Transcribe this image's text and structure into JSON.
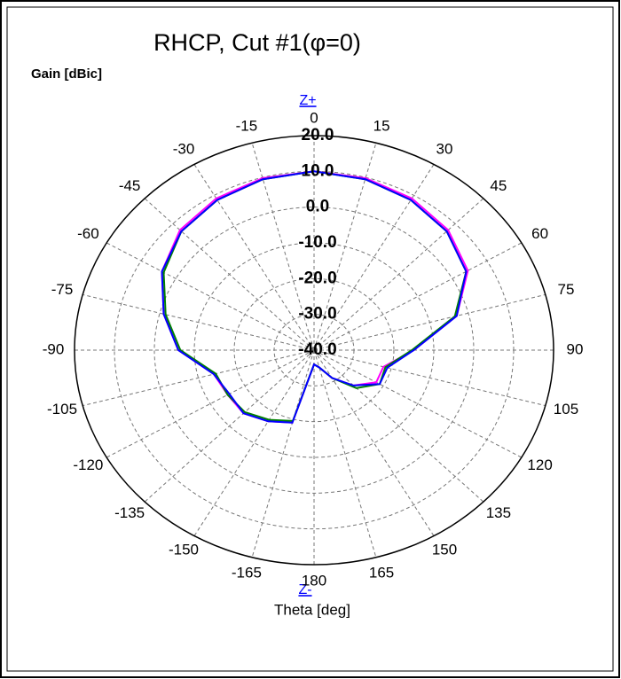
{
  "chart_data": {
    "type": "polar",
    "title": "RHCP, Cut #1(φ=0)",
    "radial_axis_label": "Gain [dBic]",
    "top_label": "Z+",
    "bottom_label": "Z-",
    "angle_axis_label": "Theta [deg]",
    "rlim": [
      -40,
      20
    ],
    "rticks": [
      {
        "value": -40,
        "label": "-40.0"
      },
      {
        "value": -30,
        "label": "-30.0"
      },
      {
        "value": -20,
        "label": "-20.0"
      },
      {
        "value": -10,
        "label": "-10.0"
      },
      {
        "value": 0,
        "label": "0.0"
      },
      {
        "value": 10,
        "label": "10.0"
      },
      {
        "value": 20,
        "label": "20.0"
      }
    ],
    "thetaticks": [
      0,
      15,
      30,
      45,
      60,
      75,
      90,
      105,
      120,
      135,
      150,
      165,
      180,
      -165,
      -150,
      -135,
      -120,
      -105,
      -90,
      -75,
      -60,
      -45,
      -30,
      -15
    ],
    "grid": true,
    "x": [
      -165,
      -150,
      -135,
      -120,
      -105,
      -90,
      -75,
      -60,
      -45,
      -30,
      -15,
      0,
      15,
      30,
      45,
      60,
      75,
      90,
      105,
      120,
      135,
      150,
      165,
      180
    ],
    "series": [
      {
        "color": "#ff00ff",
        "values": [
          -19,
          -17,
          -15,
          -15,
          -14,
          -6,
          -1,
          4,
          7.5,
          9,
          9.8,
          10,
          9.8,
          9,
          7.5,
          4.5,
          -3,
          -15,
          -22,
          -22,
          -26,
          -31,
          -35,
          -36
        ]
      },
      {
        "color": "#008000",
        "values": [
          -19.5,
          -17.5,
          -15.5,
          -15,
          -14.5,
          -6.5,
          -1.5,
          3.5,
          7,
          8.5,
          9.5,
          10,
          9.5,
          8.5,
          7,
          4,
          -3.5,
          -15.5,
          -21.5,
          -21,
          -25,
          -31,
          -35,
          -36
        ]
      },
      {
        "color": "#0000ff",
        "values": [
          -19,
          -17,
          -15,
          -15.5,
          -14,
          -6,
          -1,
          4,
          7,
          8.5,
          9.5,
          10,
          9.5,
          8.5,
          7,
          4,
          -3,
          -15,
          -21,
          -21,
          -26,
          -31,
          -35,
          -36
        ]
      }
    ]
  }
}
